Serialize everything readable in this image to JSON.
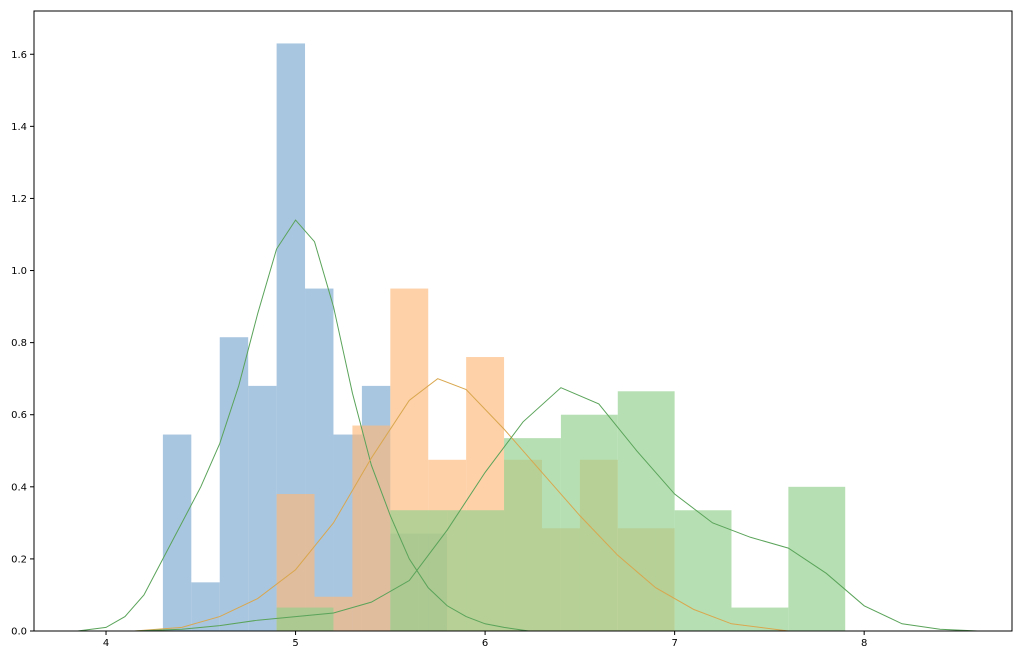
{
  "chart_data": {
    "type": "histogram",
    "title": "",
    "xlabel": "",
    "ylabel": "",
    "xlim": [
      3.62,
      8.78
    ],
    "ylim": [
      0,
      1.72
    ],
    "grid": false,
    "legend": "none",
    "x_ticks": [
      {
        "value": 4,
        "label": "4"
      },
      {
        "value": 5,
        "label": "5"
      },
      {
        "value": 6,
        "label": "6"
      },
      {
        "value": 7,
        "label": "7"
      },
      {
        "value": 8,
        "label": "8"
      }
    ],
    "y_ticks": [
      {
        "value": 0,
        "label": "0.0"
      },
      {
        "value": 0.2,
        "label": "0.2"
      },
      {
        "value": 0.4,
        "label": "0.4"
      },
      {
        "value": 0.6,
        "label": "0.6"
      },
      {
        "value": 0.8,
        "label": "0.8"
      },
      {
        "value": 1.0,
        "label": "1.0"
      },
      {
        "value": 1.2,
        "label": "1.2"
      },
      {
        "value": 1.4,
        "label": "1.4"
      },
      {
        "value": 1.6,
        "label": "1.6"
      }
    ],
    "series": [
      {
        "color": "#7ba7cf",
        "kde_color": "#5aa35a",
        "bins": [
          {
            "x0": 4.3,
            "x1": 4.45,
            "height": 0.545
          },
          {
            "x0": 4.45,
            "x1": 4.6,
            "height": 0.135
          },
          {
            "x0": 4.6,
            "x1": 4.75,
            "height": 0.815
          },
          {
            "x0": 4.75,
            "x1": 4.9,
            "height": 0.68
          },
          {
            "x0": 4.9,
            "x1": 5.05,
            "height": 1.63
          },
          {
            "x0": 5.05,
            "x1": 5.2,
            "height": 0.95
          },
          {
            "x0": 5.2,
            "x1": 5.35,
            "height": 0.545
          },
          {
            "x0": 5.35,
            "x1": 5.5,
            "height": 0.68
          },
          {
            "x0": 5.5,
            "x1": 5.65,
            "height": 0.27
          },
          {
            "x0": 5.65,
            "x1": 5.8,
            "height": 0.27
          }
        ],
        "kde": [
          [
            3.85,
            0.0
          ],
          [
            4.0,
            0.01
          ],
          [
            4.1,
            0.04
          ],
          [
            4.2,
            0.1
          ],
          [
            4.3,
            0.2
          ],
          [
            4.4,
            0.3
          ],
          [
            4.5,
            0.4
          ],
          [
            4.6,
            0.52
          ],
          [
            4.7,
            0.68
          ],
          [
            4.8,
            0.88
          ],
          [
            4.9,
            1.06
          ],
          [
            5.0,
            1.14
          ],
          [
            5.1,
            1.08
          ],
          [
            5.2,
            0.9
          ],
          [
            5.3,
            0.66
          ],
          [
            5.4,
            0.46
          ],
          [
            5.5,
            0.32
          ],
          [
            5.6,
            0.2
          ],
          [
            5.7,
            0.12
          ],
          [
            5.8,
            0.07
          ],
          [
            5.9,
            0.04
          ],
          [
            6.0,
            0.02
          ],
          [
            6.1,
            0.01
          ],
          [
            6.23,
            0.0
          ]
        ]
      },
      {
        "color": "#fdb97a",
        "kde_color": "#d9a74f",
        "bins": [
          {
            "x0": 4.9,
            "x1": 5.1,
            "height": 0.38
          },
          {
            "x0": 5.1,
            "x1": 5.3,
            "height": 0.095
          },
          {
            "x0": 5.3,
            "x1": 5.5,
            "height": 0.57
          },
          {
            "x0": 5.5,
            "x1": 5.7,
            "height": 0.95
          },
          {
            "x0": 5.7,
            "x1": 5.9,
            "height": 0.475
          },
          {
            "x0": 5.9,
            "x1": 6.1,
            "height": 0.76
          },
          {
            "x0": 6.1,
            "x1": 6.3,
            "height": 0.475
          },
          {
            "x0": 6.3,
            "x1": 6.5,
            "height": 0.285
          },
          {
            "x0": 6.5,
            "x1": 6.7,
            "height": 0.475
          },
          {
            "x0": 6.7,
            "x1": 6.9,
            "height": 0.285
          },
          {
            "x0": 6.9,
            "x1": 7.0,
            "height": 0.285
          }
        ],
        "kde": [
          [
            4.15,
            0.0
          ],
          [
            4.4,
            0.01
          ],
          [
            4.6,
            0.04
          ],
          [
            4.8,
            0.09
          ],
          [
            5.0,
            0.17
          ],
          [
            5.2,
            0.3
          ],
          [
            5.4,
            0.48
          ],
          [
            5.6,
            0.64
          ],
          [
            5.75,
            0.7
          ],
          [
            5.9,
            0.67
          ],
          [
            6.1,
            0.56
          ],
          [
            6.3,
            0.44
          ],
          [
            6.5,
            0.32
          ],
          [
            6.7,
            0.21
          ],
          [
            6.9,
            0.12
          ],
          [
            7.1,
            0.06
          ],
          [
            7.3,
            0.02
          ],
          [
            7.6,
            0.0
          ]
        ]
      },
      {
        "color": "#8fd08a",
        "kde_color": "#5aa35a",
        "bins": [
          {
            "x0": 4.9,
            "x1": 5.2,
            "height": 0.065
          },
          {
            "x0": 5.5,
            "x1": 5.8,
            "height": 0.335
          },
          {
            "x0": 5.8,
            "x1": 6.1,
            "height": 0.335
          },
          {
            "x0": 6.1,
            "x1": 6.4,
            "height": 0.535
          },
          {
            "x0": 6.4,
            "x1": 6.7,
            "height": 0.6
          },
          {
            "x0": 6.7,
            "x1": 7.0,
            "height": 0.665
          },
          {
            "x0": 7.0,
            "x1": 7.3,
            "height": 0.335
          },
          {
            "x0": 7.3,
            "x1": 7.6,
            "height": 0.065
          },
          {
            "x0": 7.6,
            "x1": 7.9,
            "height": 0.4
          }
        ],
        "kde": [
          [
            4.15,
            0.0
          ],
          [
            4.4,
            0.005
          ],
          [
            4.6,
            0.015
          ],
          [
            4.8,
            0.03
          ],
          [
            5.0,
            0.04
          ],
          [
            5.2,
            0.05
          ],
          [
            5.4,
            0.08
          ],
          [
            5.6,
            0.14
          ],
          [
            5.8,
            0.28
          ],
          [
            6.0,
            0.44
          ],
          [
            6.2,
            0.58
          ],
          [
            6.4,
            0.675
          ],
          [
            6.6,
            0.63
          ],
          [
            6.8,
            0.5
          ],
          [
            7.0,
            0.38
          ],
          [
            7.2,
            0.3
          ],
          [
            7.4,
            0.26
          ],
          [
            7.6,
            0.23
          ],
          [
            7.8,
            0.16
          ],
          [
            8.0,
            0.07
          ],
          [
            8.2,
            0.02
          ],
          [
            8.4,
            0.005
          ],
          [
            8.6,
            0.0
          ]
        ]
      }
    ]
  }
}
